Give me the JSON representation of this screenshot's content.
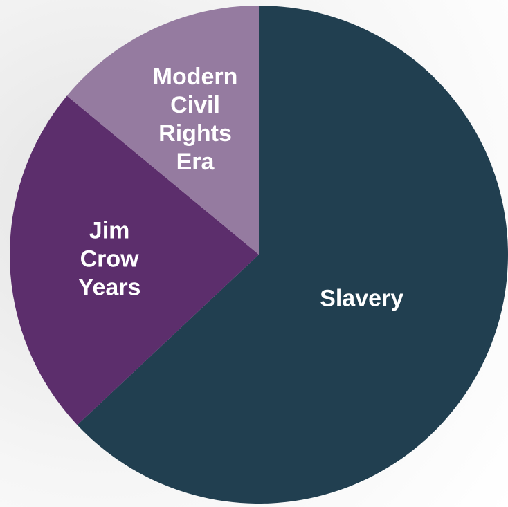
{
  "chart_data": {
    "type": "pie",
    "categories": [
      "Slavery",
      "Jim Crow Years",
      "Modern Civil Rights Era"
    ],
    "values": [
      63,
      23,
      14
    ],
    "colors": [
      "#213f50",
      "#5c2e6c",
      "#957ba0"
    ]
  }
}
